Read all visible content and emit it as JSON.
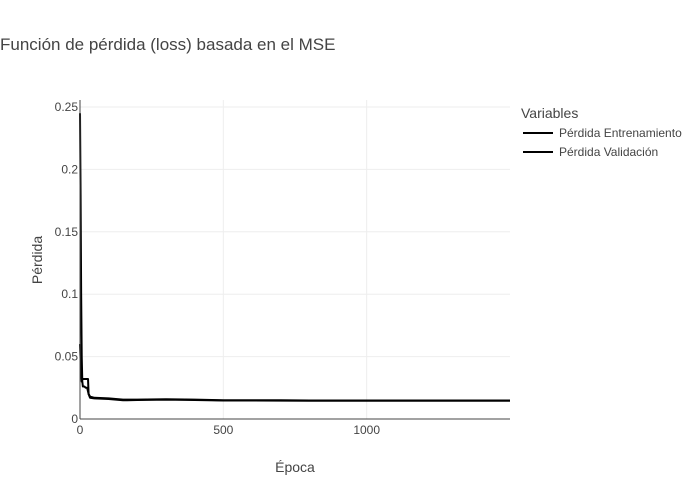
{
  "chart_data": {
    "type": "line",
    "title": "Función de pérdida (loss) basada en el MSE",
    "xlabel": "Época",
    "ylabel": "Pérdida",
    "xlim": [
      0,
      1500
    ],
    "ylim": [
      0,
      0.25
    ],
    "x_ticks": [
      0,
      500,
      1000
    ],
    "y_ticks": [
      0,
      0.05,
      0.1,
      0.15,
      0.2,
      0.25
    ],
    "grid": true,
    "legend": {
      "title": "Variables",
      "placement": "top-right"
    },
    "series": [
      {
        "name": "Pérdida Entrenamiento",
        "color": "#000000",
        "points": [
          [
            0,
            0.245
          ],
          [
            2,
            0.18
          ],
          [
            4,
            0.1
          ],
          [
            6,
            0.05
          ],
          [
            8,
            0.03
          ],
          [
            10,
            0.026
          ],
          [
            15,
            0.026
          ],
          [
            20,
            0.025
          ],
          [
            25,
            0.025
          ],
          [
            30,
            0.02
          ],
          [
            35,
            0.018
          ],
          [
            50,
            0.017
          ],
          [
            100,
            0.0165
          ],
          [
            150,
            0.0155
          ],
          [
            200,
            0.0155
          ],
          [
            300,
            0.0158
          ],
          [
            400,
            0.0155
          ],
          [
            500,
            0.015
          ],
          [
            600,
            0.015
          ],
          [
            700,
            0.015
          ],
          [
            800,
            0.0148
          ],
          [
            900,
            0.0148
          ],
          [
            1000,
            0.0148
          ],
          [
            1100,
            0.0148
          ],
          [
            1200,
            0.0148
          ],
          [
            1300,
            0.0148
          ],
          [
            1400,
            0.0148
          ],
          [
            1500,
            0.0148
          ]
        ]
      },
      {
        "name": "Pérdida Validación",
        "color": "#000000",
        "points": [
          [
            0,
            0.06
          ],
          [
            3,
            0.04
          ],
          [
            6,
            0.03
          ],
          [
            8,
            0.032
          ],
          [
            10,
            0.032
          ],
          [
            20,
            0.032
          ],
          [
            28,
            0.032
          ],
          [
            30,
            0.02
          ],
          [
            35,
            0.017
          ],
          [
            50,
            0.0165
          ],
          [
            100,
            0.016
          ],
          [
            150,
            0.015
          ],
          [
            200,
            0.0152
          ],
          [
            300,
            0.0155
          ],
          [
            400,
            0.0152
          ],
          [
            500,
            0.0148
          ],
          [
            600,
            0.0148
          ],
          [
            700,
            0.0147
          ],
          [
            800,
            0.0146
          ],
          [
            900,
            0.0146
          ],
          [
            1000,
            0.0146
          ],
          [
            1100,
            0.0146
          ],
          [
            1200,
            0.0146
          ],
          [
            1300,
            0.0146
          ],
          [
            1400,
            0.0146
          ],
          [
            1500,
            0.0146
          ]
        ]
      }
    ]
  }
}
